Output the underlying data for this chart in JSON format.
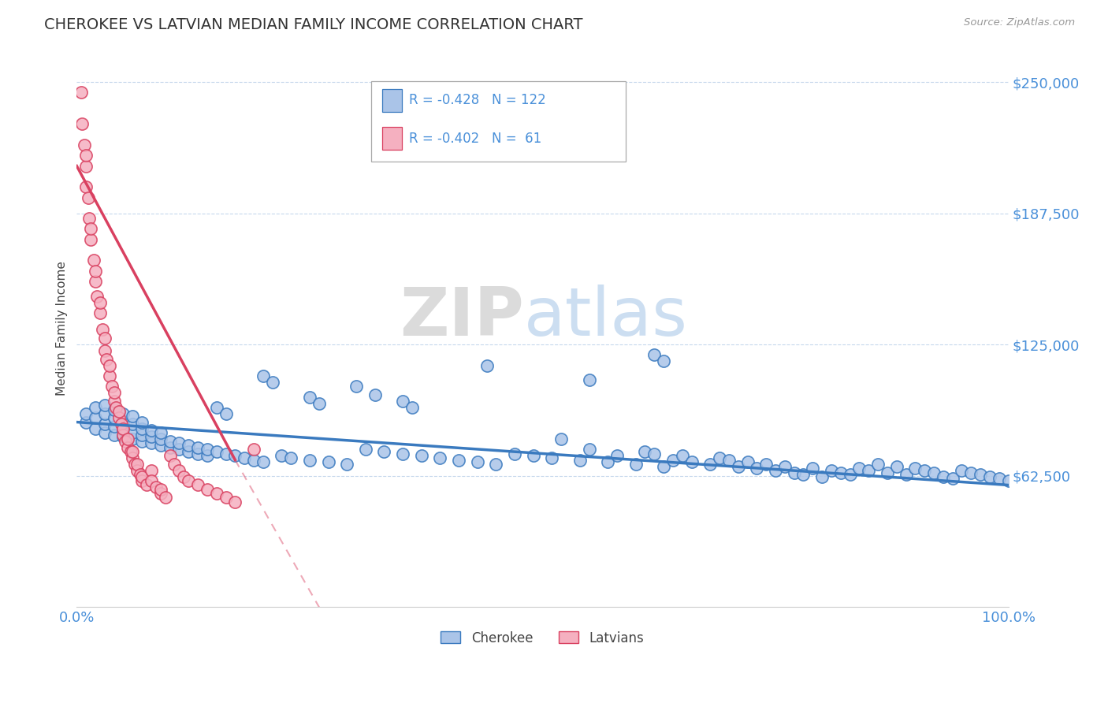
{
  "title": "CHEROKEE VS LATVIAN MEDIAN FAMILY INCOME CORRELATION CHART",
  "source_text": "Source: ZipAtlas.com",
  "ylabel": "Median Family Income",
  "xlim": [
    0.0,
    1.0
  ],
  "ylim": [
    0,
    265000
  ],
  "yticks": [
    62500,
    125000,
    187500,
    250000
  ],
  "ytick_labels": [
    "$62,500",
    "$125,000",
    "$187,500",
    "$250,000"
  ],
  "xtick_labels": [
    "0.0%",
    "100.0%"
  ],
  "background_color": "#ffffff",
  "cherokee_color": "#aac4e8",
  "latvians_color": "#f5b0c0",
  "cherokee_line_color": "#3a7abf",
  "latvians_line_color": "#d94060",
  "title_color": "#333333",
  "title_fontsize": 14,
  "axis_label_color": "#444444",
  "tick_label_color": "#4a90d9",
  "legend_label_cherokee": "Cherokee",
  "legend_label_latvians": "Latvians",
  "legend_r_cherokee": "R = -0.428",
  "legend_n_cherokee": "N = 122",
  "legend_r_latvians": "R = -0.402",
  "legend_n_latvians": "N =  61",
  "cherokee_scatter_x": [
    0.01,
    0.01,
    0.02,
    0.02,
    0.02,
    0.03,
    0.03,
    0.03,
    0.03,
    0.04,
    0.04,
    0.04,
    0.04,
    0.05,
    0.05,
    0.05,
    0.05,
    0.06,
    0.06,
    0.06,
    0.06,
    0.07,
    0.07,
    0.07,
    0.07,
    0.08,
    0.08,
    0.08,
    0.09,
    0.09,
    0.09,
    0.1,
    0.1,
    0.11,
    0.11,
    0.12,
    0.12,
    0.13,
    0.13,
    0.14,
    0.14,
    0.15,
    0.16,
    0.17,
    0.18,
    0.19,
    0.2,
    0.22,
    0.23,
    0.25,
    0.27,
    0.29,
    0.31,
    0.33,
    0.35,
    0.37,
    0.39,
    0.41,
    0.43,
    0.45,
    0.47,
    0.49,
    0.51,
    0.52,
    0.54,
    0.55,
    0.57,
    0.58,
    0.6,
    0.61,
    0.62,
    0.63,
    0.64,
    0.65,
    0.66,
    0.68,
    0.69,
    0.7,
    0.71,
    0.72,
    0.73,
    0.74,
    0.75,
    0.76,
    0.77,
    0.78,
    0.79,
    0.8,
    0.81,
    0.82,
    0.83,
    0.84,
    0.85,
    0.86,
    0.87,
    0.88,
    0.89,
    0.9,
    0.91,
    0.92,
    0.93,
    0.94,
    0.95,
    0.96,
    0.97,
    0.98,
    0.99,
    1.0,
    0.62,
    0.63,
    0.15,
    0.16,
    0.2,
    0.21,
    0.25,
    0.26,
    0.3,
    0.32,
    0.35,
    0.36,
    0.44,
    0.55
  ],
  "cherokee_scatter_y": [
    88000,
    92000,
    85000,
    90000,
    95000,
    83000,
    87000,
    92000,
    96000,
    82000,
    86000,
    90000,
    94000,
    81000,
    84000,
    88000,
    92000,
    80000,
    83000,
    87000,
    91000,
    79000,
    82000,
    85000,
    88000,
    78000,
    81000,
    84000,
    77000,
    80000,
    83000,
    76000,
    79000,
    75000,
    78000,
    74000,
    77000,
    73000,
    76000,
    72000,
    75000,
    74000,
    73000,
    72000,
    71000,
    70000,
    69000,
    72000,
    71000,
    70000,
    69000,
    68000,
    75000,
    74000,
    73000,
    72000,
    71000,
    70000,
    69000,
    68000,
    73000,
    72000,
    71000,
    80000,
    70000,
    75000,
    69000,
    72000,
    68000,
    74000,
    73000,
    67000,
    70000,
    72000,
    69000,
    68000,
    71000,
    70000,
    67000,
    69000,
    66000,
    68000,
    65000,
    67000,
    64000,
    63000,
    66000,
    62000,
    65000,
    64000,
    63000,
    66000,
    65000,
    68000,
    64000,
    67000,
    63000,
    66000,
    65000,
    64000,
    62000,
    61000,
    65000,
    64000,
    63000,
    62000,
    61000,
    60000,
    120000,
    117000,
    95000,
    92000,
    110000,
    107000,
    100000,
    97000,
    105000,
    101000,
    98000,
    95000,
    115000,
    108000
  ],
  "latvians_scatter_x": [
    0.005,
    0.006,
    0.008,
    0.01,
    0.01,
    0.01,
    0.012,
    0.013,
    0.015,
    0.015,
    0.018,
    0.02,
    0.02,
    0.022,
    0.025,
    0.025,
    0.028,
    0.03,
    0.03,
    0.032,
    0.035,
    0.035,
    0.038,
    0.04,
    0.04,
    0.042,
    0.045,
    0.045,
    0.048,
    0.05,
    0.05,
    0.052,
    0.055,
    0.055,
    0.058,
    0.06,
    0.06,
    0.062,
    0.065,
    0.065,
    0.068,
    0.07,
    0.07,
    0.075,
    0.08,
    0.08,
    0.085,
    0.09,
    0.09,
    0.095,
    0.1,
    0.105,
    0.11,
    0.115,
    0.12,
    0.13,
    0.14,
    0.15,
    0.16,
    0.17,
    0.19
  ],
  "latvians_scatter_y": [
    245000,
    230000,
    220000,
    210000,
    200000,
    215000,
    195000,
    185000,
    175000,
    180000,
    165000,
    155000,
    160000,
    148000,
    140000,
    145000,
    132000,
    122000,
    128000,
    118000,
    110000,
    115000,
    105000,
    98000,
    102000,
    95000,
    90000,
    93000,
    87000,
    82000,
    85000,
    79000,
    76000,
    80000,
    74000,
    71000,
    74000,
    68000,
    65000,
    68000,
    63000,
    60000,
    62000,
    58000,
    65000,
    60000,
    57000,
    54000,
    56000,
    52000,
    72000,
    68000,
    65000,
    62000,
    60000,
    58000,
    56000,
    54000,
    52000,
    50000,
    75000
  ]
}
